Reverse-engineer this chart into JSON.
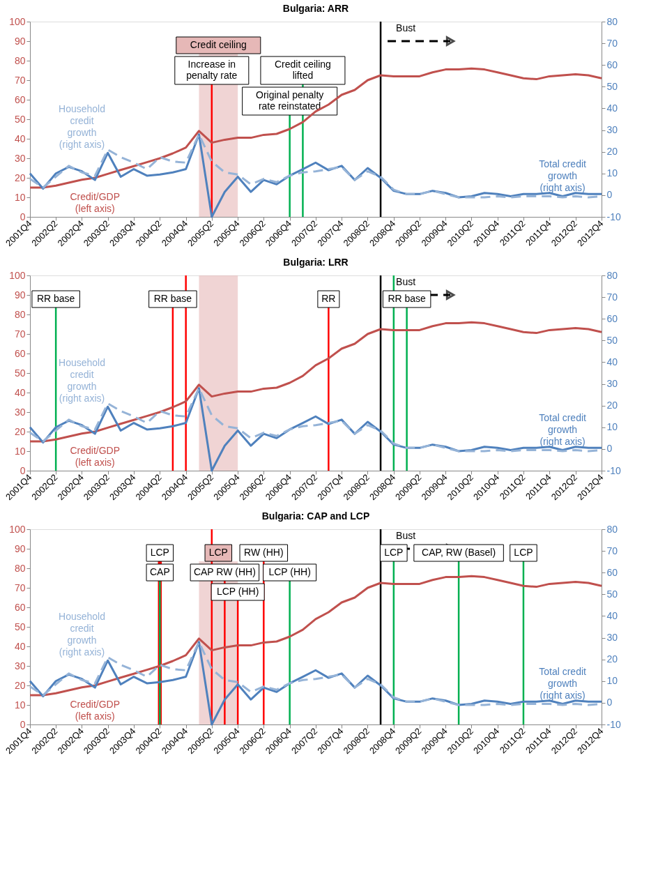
{
  "chart_data": [
    {
      "type": "line",
      "title": "Bulgaria: ARR",
      "x": [
        "2001-10",
        "2002-01",
        "2002-04",
        "2002-07",
        "2002-10",
        "2003-01",
        "2003-04",
        "2003-07",
        "2003-10",
        "2004-01",
        "2004-04",
        "2004-07",
        "2004-10",
        "2005-01",
        "2005-04",
        "2005-07",
        "2005-10",
        "2006-01",
        "2006-04",
        "2006-07",
        "2006-10",
        "2007-01",
        "2007-04",
        "2007-07",
        "2007-10",
        "2008-01",
        "2008-04",
        "2008-07",
        "2008-10",
        "2009-01",
        "2009-04",
        "2009-07",
        "2009-10",
        "2010-01",
        "2010-04",
        "2010-07",
        "2010-10",
        "2011-01",
        "2011-04",
        "2011-07",
        "2011-10",
        "2012-01",
        "2012-04",
        "2012-07",
        "2012-10"
      ],
      "xlim": [
        "2001-10",
        "2012-10"
      ],
      "xticks": [
        {
          "value": "2001-10",
          "label": "2001Q4"
        },
        {
          "value": "2002-04",
          "label": "2002Q2"
        },
        {
          "value": "2002-10",
          "label": "2002Q4"
        },
        {
          "value": "2003-04",
          "label": "2003Q2"
        },
        {
          "value": "2003-10",
          "label": "2003Q4"
        },
        {
          "value": "2004-04",
          "label": "2004Q2"
        },
        {
          "value": "2004-10",
          "label": "2004Q4"
        },
        {
          "value": "2005-04",
          "label": "2005Q2"
        },
        {
          "value": "2005-10",
          "label": "2005Q4"
        },
        {
          "value": "2006-04",
          "label": "2006Q2"
        },
        {
          "value": "2006-10",
          "label": "2006Q4"
        },
        {
          "value": "2007-04",
          "label": "2007Q2"
        },
        {
          "value": "2007-10",
          "label": "2007Q4"
        },
        {
          "value": "2008-04",
          "label": "2008Q2"
        },
        {
          "value": "2008-10",
          "label": "2008Q4"
        },
        {
          "value": "2009-04",
          "label": "2009Q2"
        },
        {
          "value": "2009-10",
          "label": "2009Q4"
        },
        {
          "value": "2010-04",
          "label": "2010Q2"
        },
        {
          "value": "2010-10",
          "label": "2010Q4"
        },
        {
          "value": "2011-04",
          "label": "2011Q2"
        },
        {
          "value": "2011-10",
          "label": "2011Q4"
        },
        {
          "value": "2012-04",
          "label": "2012Q2"
        },
        {
          "value": "2012-10",
          "label": "2012Q4"
        }
      ],
      "ylim": [
        0,
        100
      ],
      "yticks": [
        0,
        10,
        20,
        30,
        40,
        50,
        60,
        70,
        80,
        90,
        100
      ],
      "y2lim": [
        -10,
        80
      ],
      "y2ticks": [
        -10,
        0,
        10,
        20,
        30,
        40,
        50,
        60,
        70,
        80
      ],
      "series": [
        {
          "name": "Credit/GDP (left axis)",
          "color": "#c0504d",
          "values": [
            15,
            15,
            16,
            17.5,
            19,
            20,
            22,
            24,
            26,
            28,
            30,
            32.5,
            35.5,
            44,
            38,
            39.5,
            40.5,
            40.5,
            42,
            42.5,
            45,
            48.5,
            54,
            57.5,
            62.5,
            65,
            70,
            72.5,
            72,
            72,
            72,
            74,
            75.5,
            75.5,
            76,
            75.5,
            74,
            72.5,
            71,
            70.5,
            72,
            72.5,
            73,
            72.5,
            71
          ]
        },
        {
          "name": "Total credit growth (right axis)",
          "color": "#4f81bd",
          "axis": "y2",
          "values": [
            10,
            3,
            10,
            13,
            11,
            7,
            19.5,
            8.5,
            12,
            9,
            9.5,
            10.5,
            12,
            28,
            -10,
            1.5,
            8.5,
            1.5,
            7,
            5,
            9,
            12,
            15,
            11.5,
            13.5,
            7,
            12.5,
            8,
            2,
            0.5,
            0.5,
            2,
            1,
            -1,
            -0.5,
            1,
            0.5,
            -0.5,
            0.5,
            0.5,
            1,
            -0.5,
            1,
            0.5,
            0.5
          ]
        },
        {
          "name": "Household credit growth (right axis)",
          "color": "#95b3d7",
          "axis": "y2",
          "line_style": "dashed",
          "values": [
            7.5,
            3.5,
            8.5,
            13.5,
            10.5,
            9,
            21,
            17.5,
            15,
            12,
            17.5,
            15.5,
            15,
            28,
            15.5,
            10.5,
            9.5,
            5,
            7.5,
            6,
            9,
            10.5,
            11,
            12,
            13,
            7,
            11,
            8.5,
            2.5,
            0.5,
            0.5,
            2,
            0.5,
            -1,
            -1,
            -1,
            -0.5,
            -1,
            -0.5,
            -0.5,
            -0.5,
            -1,
            -0.5,
            -1,
            -0.5
          ]
        }
      ],
      "bands": [
        {
          "axis": "x",
          "from": "2005-01",
          "to": "2005-10",
          "label": "Credit ceiling",
          "color": "#e6b8b7"
        }
      ],
      "ref_lines": [
        {
          "axis": "x",
          "value": "2005-04",
          "label": "Increase in penalty rate",
          "color": "#ff0000"
        },
        {
          "axis": "x",
          "value": "2006-10",
          "label": "Original penalty rate reinstated",
          "color": "#00b050"
        },
        {
          "axis": "x",
          "value": "2007-01",
          "label": "Credit ceiling lifted",
          "color": "#00b050"
        },
        {
          "axis": "x",
          "value": "2008-07",
          "label": "Bust",
          "color": "#000000"
        }
      ]
    },
    {
      "type": "line",
      "title": "Bulgaria: LRR",
      "x": [
        "2001-10",
        "2002-01",
        "2002-04",
        "2002-07",
        "2002-10",
        "2003-01",
        "2003-04",
        "2003-07",
        "2003-10",
        "2004-01",
        "2004-04",
        "2004-07",
        "2004-10",
        "2005-01",
        "2005-04",
        "2005-07",
        "2005-10",
        "2006-01",
        "2006-04",
        "2006-07",
        "2006-10",
        "2007-01",
        "2007-04",
        "2007-07",
        "2007-10",
        "2008-01",
        "2008-04",
        "2008-07",
        "2008-10",
        "2009-01",
        "2009-04",
        "2009-07",
        "2009-10",
        "2010-01",
        "2010-04",
        "2010-07",
        "2010-10",
        "2011-01",
        "2011-04",
        "2011-07",
        "2011-10",
        "2012-01",
        "2012-04",
        "2012-07",
        "2012-10"
      ],
      "xlim": [
        "2001-10",
        "2012-10"
      ],
      "xticks": [
        {
          "value": "2001-10",
          "label": "2001Q4"
        },
        {
          "value": "2002-04",
          "label": "2002Q2"
        },
        {
          "value": "2002-10",
          "label": "2002Q4"
        },
        {
          "value": "2003-04",
          "label": "2003Q2"
        },
        {
          "value": "2003-10",
          "label": "2003Q4"
        },
        {
          "value": "2004-04",
          "label": "2004Q2"
        },
        {
          "value": "2004-10",
          "label": "2004Q4"
        },
        {
          "value": "2005-04",
          "label": "2005Q2"
        },
        {
          "value": "2005-10",
          "label": "2005Q4"
        },
        {
          "value": "2006-04",
          "label": "2006Q2"
        },
        {
          "value": "2006-10",
          "label": "2006Q4"
        },
        {
          "value": "2007-04",
          "label": "2007Q2"
        },
        {
          "value": "2007-10",
          "label": "2007Q4"
        },
        {
          "value": "2008-04",
          "label": "2008Q2"
        },
        {
          "value": "2008-10",
          "label": "2008Q4"
        },
        {
          "value": "2009-04",
          "label": "2009Q2"
        },
        {
          "value": "2009-10",
          "label": "2009Q4"
        },
        {
          "value": "2010-04",
          "label": "2010Q2"
        },
        {
          "value": "2010-10",
          "label": "2010Q4"
        },
        {
          "value": "2011-04",
          "label": "2011Q2"
        },
        {
          "value": "2011-10",
          "label": "2011Q4"
        },
        {
          "value": "2012-04",
          "label": "2012Q2"
        },
        {
          "value": "2012-10",
          "label": "2012Q4"
        }
      ],
      "ylim": [
        0,
        100
      ],
      "yticks": [
        0,
        10,
        20,
        30,
        40,
        50,
        60,
        70,
        80,
        90,
        100
      ],
      "y2lim": [
        -10,
        80
      ],
      "y2ticks": [
        -10,
        0,
        10,
        20,
        30,
        40,
        50,
        60,
        70,
        80
      ],
      "series": [
        {
          "name": "Credit/GDP (left axis)",
          "color": "#c0504d",
          "values": [
            15,
            15,
            16,
            17.5,
            19,
            20,
            22,
            24,
            26,
            28,
            30,
            32.5,
            35.5,
            44,
            38,
            39.5,
            40.5,
            40.5,
            42,
            42.5,
            45,
            48.5,
            54,
            57.5,
            62.5,
            65,
            70,
            72.5,
            72,
            72,
            72,
            74,
            75.5,
            75.5,
            76,
            75.5,
            74,
            72.5,
            71,
            70.5,
            72,
            72.5,
            73,
            72.5,
            71
          ]
        },
        {
          "name": "Total credit growth (right axis)",
          "color": "#4f81bd",
          "axis": "y2",
          "values": [
            10,
            3,
            10,
            13,
            11,
            7,
            19.5,
            8.5,
            12,
            9,
            9.5,
            10.5,
            12,
            28,
            -10,
            1.5,
            8.5,
            1.5,
            7,
            5,
            9,
            12,
            15,
            11.5,
            13.5,
            7,
            12.5,
            8,
            2,
            0.5,
            0.5,
            2,
            1,
            -1,
            -0.5,
            1,
            0.5,
            -0.5,
            0.5,
            0.5,
            1,
            -0.5,
            1,
            0.5,
            0.5
          ]
        },
        {
          "name": "Household credit growth (right axis)",
          "color": "#95b3d7",
          "axis": "y2",
          "line_style": "dashed",
          "values": [
            7.5,
            3.5,
            8.5,
            13.5,
            10.5,
            9,
            21,
            17.5,
            15,
            12,
            17.5,
            15.5,
            15,
            28,
            15.5,
            10.5,
            9.5,
            5,
            7.5,
            6,
            9,
            10.5,
            11,
            12,
            13,
            7,
            11,
            8.5,
            2.5,
            0.5,
            0.5,
            2,
            0.5,
            -1,
            -1,
            -1,
            -0.5,
            -1,
            -0.5,
            -0.5,
            -0.5,
            -1,
            -0.5,
            -1,
            -0.5
          ]
        }
      ],
      "bands": [
        {
          "axis": "x",
          "from": "2005-01",
          "to": "2005-10",
          "color": "#e6b8b7"
        }
      ],
      "ref_lines": [
        {
          "axis": "x",
          "value": "2002-04",
          "label": "RR base",
          "color": "#00b050"
        },
        {
          "axis": "x",
          "value": "2004-07",
          "label": "RR base",
          "color": "#ff0000"
        },
        {
          "axis": "x",
          "value": "2004-10",
          "color": "#ff0000"
        },
        {
          "axis": "x",
          "value": "2007-07",
          "label": "RR",
          "color": "#ff0000"
        },
        {
          "axis": "x",
          "value": "2008-07",
          "label": "Bust",
          "color": "#000000"
        },
        {
          "axis": "x",
          "value": "2008-10",
          "color": "#00b050"
        },
        {
          "axis": "x",
          "value": "2009-01",
          "label": "RR base",
          "color": "#00b050"
        }
      ]
    },
    {
      "type": "line",
      "title": "Bulgaria: CAP and LCP",
      "x": [
        "2001-10",
        "2002-01",
        "2002-04",
        "2002-07",
        "2002-10",
        "2003-01",
        "2003-04",
        "2003-07",
        "2003-10",
        "2004-01",
        "2004-04",
        "2004-07",
        "2004-10",
        "2005-01",
        "2005-04",
        "2005-07",
        "2005-10",
        "2006-01",
        "2006-04",
        "2006-07",
        "2006-10",
        "2007-01",
        "2007-04",
        "2007-07",
        "2007-10",
        "2008-01",
        "2008-04",
        "2008-07",
        "2008-10",
        "2009-01",
        "2009-04",
        "2009-07",
        "2009-10",
        "2010-01",
        "2010-04",
        "2010-07",
        "2010-10",
        "2011-01",
        "2011-04",
        "2011-07",
        "2011-10",
        "2012-01",
        "2012-04",
        "2012-07",
        "2012-10"
      ],
      "xlim": [
        "2001-10",
        "2012-10"
      ],
      "xticks": [
        {
          "value": "2001-10",
          "label": "2001Q4"
        },
        {
          "value": "2002-04",
          "label": "2002Q2"
        },
        {
          "value": "2002-10",
          "label": "2002Q4"
        },
        {
          "value": "2003-04",
          "label": "2003Q2"
        },
        {
          "value": "2003-10",
          "label": "2003Q4"
        },
        {
          "value": "2004-04",
          "label": "2004Q2"
        },
        {
          "value": "2004-10",
          "label": "2004Q4"
        },
        {
          "value": "2005-04",
          "label": "2005Q2"
        },
        {
          "value": "2005-10",
          "label": "2005Q4"
        },
        {
          "value": "2006-04",
          "label": "2006Q2"
        },
        {
          "value": "2006-10",
          "label": "2006Q4"
        },
        {
          "value": "2007-04",
          "label": "2007Q2"
        },
        {
          "value": "2007-10",
          "label": "2007Q4"
        },
        {
          "value": "2008-04",
          "label": "2008Q2"
        },
        {
          "value": "2008-10",
          "label": "2008Q4"
        },
        {
          "value": "2009-04",
          "label": "2009Q2"
        },
        {
          "value": "2009-10",
          "label": "2009Q4"
        },
        {
          "value": "2010-04",
          "label": "2010Q2"
        },
        {
          "value": "2010-10",
          "label": "2010Q4"
        },
        {
          "value": "2011-04",
          "label": "2011Q2"
        },
        {
          "value": "2011-10",
          "label": "2011Q4"
        },
        {
          "value": "2012-04",
          "label": "2012Q2"
        },
        {
          "value": "2012-10",
          "label": "2012Q4"
        }
      ],
      "ylim": [
        0,
        100
      ],
      "yticks": [
        0,
        10,
        20,
        30,
        40,
        50,
        60,
        70,
        80,
        90,
        100
      ],
      "y2lim": [
        -10,
        80
      ],
      "y2ticks": [
        -10,
        0,
        10,
        20,
        30,
        40,
        50,
        60,
        70,
        80
      ],
      "series": [
        {
          "name": "Credit/GDP (left axis)",
          "color": "#c0504d",
          "values": [
            15,
            15,
            16,
            17.5,
            19,
            20,
            22,
            24,
            26,
            28,
            30,
            32.5,
            35.5,
            44,
            38,
            39.5,
            40.5,
            40.5,
            42,
            42.5,
            45,
            48.5,
            54,
            57.5,
            62.5,
            65,
            70,
            72.5,
            72,
            72,
            72,
            74,
            75.5,
            75.5,
            76,
            75.5,
            74,
            72.5,
            71,
            70.5,
            72,
            72.5,
            73,
            72.5,
            71
          ]
        },
        {
          "name": "Total credit growth (right axis)",
          "color": "#4f81bd",
          "axis": "y2",
          "values": [
            10,
            3,
            10,
            13,
            11,
            7,
            19.5,
            8.5,
            12,
            9,
            9.5,
            10.5,
            12,
            28,
            -10,
            1.5,
            8.5,
            1.5,
            7,
            5,
            9,
            12,
            15,
            11.5,
            13.5,
            7,
            12.5,
            8,
            2,
            0.5,
            0.5,
            2,
            1,
            -1,
            -0.5,
            1,
            0.5,
            -0.5,
            0.5,
            0.5,
            1,
            -0.5,
            1,
            0.5,
            0.5
          ]
        },
        {
          "name": "Household credit growth (right axis)",
          "color": "#95b3d7",
          "axis": "y2",
          "line_style": "dashed",
          "values": [
            7.5,
            3.5,
            8.5,
            13.5,
            10.5,
            9,
            21,
            17.5,
            15,
            12,
            17.5,
            15.5,
            15,
            28,
            15.5,
            10.5,
            9.5,
            5,
            7.5,
            6,
            9,
            10.5,
            11,
            12,
            13,
            7,
            11,
            8.5,
            2.5,
            0.5,
            0.5,
            2,
            0.5,
            -1,
            -1,
            -1,
            -0.5,
            -1,
            -0.5,
            -0.5,
            -0.5,
            -1,
            -0.5,
            -1,
            -0.5
          ]
        }
      ],
      "bands": [
        {
          "axis": "x",
          "from": "2005-01",
          "to": "2005-10",
          "label": "LCP",
          "color": "#e6b8b7"
        }
      ],
      "ref_lines": [
        {
          "axis": "x",
          "value": "2004-04",
          "label": "LCP",
          "color": "#ff0000"
        },
        {
          "axis": "x",
          "value": "2004-04",
          "label": "CAP",
          "color": "#00b050"
        },
        {
          "axis": "x",
          "value": "2005-04",
          "color": "#ff0000"
        },
        {
          "axis": "x",
          "value": "2005-07",
          "label": "CAP RW (HH)",
          "color": "#ff0000"
        },
        {
          "axis": "x",
          "value": "2005-10",
          "label": "LCP (HH)",
          "color": "#ff0000"
        },
        {
          "axis": "x",
          "value": "2006-04",
          "label": "RW (HH)",
          "color": "#ff0000"
        },
        {
          "axis": "x",
          "value": "2006-10",
          "label": "LCP (HH)",
          "color": "#00b050"
        },
        {
          "axis": "x",
          "value": "2008-07",
          "label": "Bust",
          "color": "#000000"
        },
        {
          "axis": "x",
          "value": "2008-10",
          "label": "LCP",
          "color": "#00b050"
        },
        {
          "axis": "x",
          "value": "2010-01",
          "label": "CAP, RW (Basel)",
          "color": "#00b050"
        },
        {
          "axis": "x",
          "value": "2011-04",
          "label": "LCP",
          "color": "#00b050"
        }
      ]
    }
  ]
}
